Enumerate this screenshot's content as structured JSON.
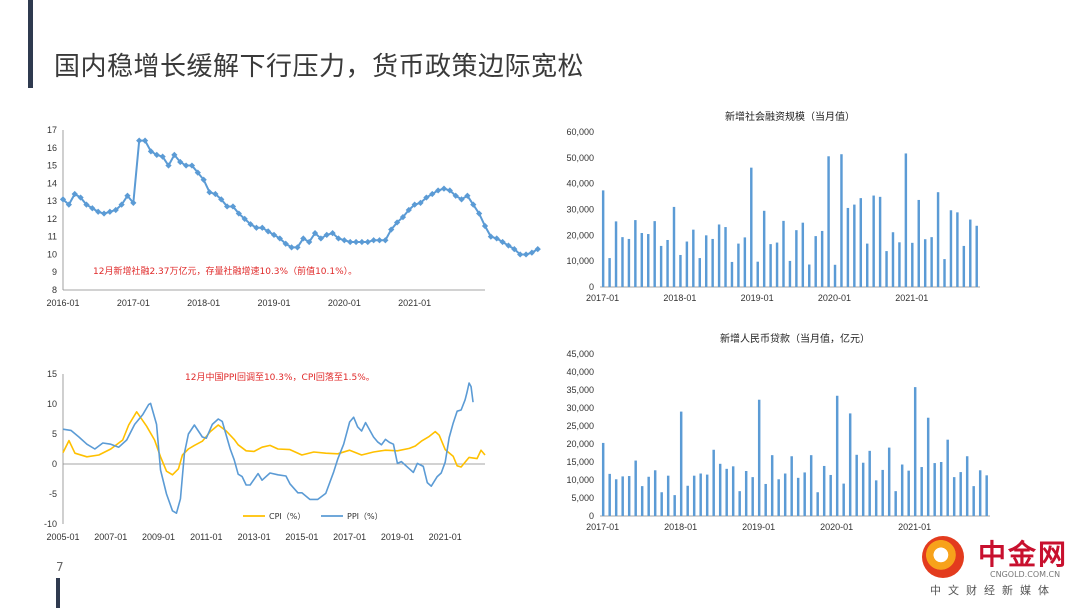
{
  "page": {
    "title": "国内稳增长缓解下行压力，货币政策边际宽松",
    "page_number": "7"
  },
  "logo": {
    "cn": "中金网",
    "url": "CNGOLD.COM.CN",
    "sub": "中文财经新媒体"
  },
  "chart_data": [
    {
      "type": "line",
      "title": "",
      "note": "12月新增社融2.37万亿元，存量社融增速10.3%（前值10.1%）。",
      "x_ticks": [
        "2016-01",
        "2017-01",
        "2018-01",
        "2019-01",
        "2020-01",
        "2021-01"
      ],
      "y_ticks": [
        "8",
        "9",
        "10",
        "11",
        "12",
        "13",
        "14",
        "15",
        "16",
        "17"
      ],
      "ylim": [
        8,
        17
      ],
      "start": "2016-01",
      "series": [
        {
          "name": "",
          "color": "#5b9bd5",
          "values": [
            13.1,
            12.8,
            13.4,
            13.2,
            12.8,
            12.6,
            12.4,
            12.3,
            12.4,
            12.5,
            12.8,
            13.3,
            12.9,
            16.4,
            16.4,
            15.8,
            15.6,
            15.5,
            15.0,
            15.6,
            15.2,
            15.0,
            15.0,
            14.6,
            14.2,
            13.5,
            13.4,
            13.1,
            12.7,
            12.7,
            12.3,
            12.0,
            11.7,
            11.5,
            11.5,
            11.3,
            11.1,
            10.9,
            10.6,
            10.4,
            10.4,
            10.9,
            10.7,
            11.2,
            10.9,
            11.1,
            11.2,
            10.9,
            10.8,
            10.7,
            10.7,
            10.7,
            10.7,
            10.8,
            10.8,
            10.8,
            11.4,
            11.8,
            12.1,
            12.5,
            12.8,
            12.9,
            13.2,
            13.4,
            13.6,
            13.7,
            13.6,
            13.3,
            13.1,
            13.3,
            12.8,
            12.3,
            11.6,
            11.0,
            10.9,
            10.7,
            10.5,
            10.3,
            10.0,
            10.0,
            10.1,
            10.3
          ]
        }
      ]
    },
    {
      "type": "bar",
      "title": "新增社会融资规模（当月值）",
      "x_ticks": [
        "2017-01",
        "2018-01",
        "2019-01",
        "2020-01",
        "2021-01"
      ],
      "y_ticks": [
        "0",
        "10,000",
        "20,000",
        "30,000",
        "40,000",
        "50,000",
        "60,000"
      ],
      "ylim": [
        0,
        60000
      ],
      "series": [
        {
          "name": "",
          "color": "#5b9bd5",
          "values": [
            37400,
            11200,
            25400,
            19300,
            18600,
            25900,
            20900,
            20500,
            25500,
            15900,
            18200,
            31000,
            12400,
            17600,
            22200,
            11200,
            20000,
            18600,
            24200,
            23200,
            9700,
            16800,
            19200,
            46200,
            9800,
            29500,
            16600,
            17200,
            25600,
            10100,
            22000,
            24900,
            8700,
            19700,
            21700,
            50600,
            8600,
            51400,
            30600,
            31900,
            34400,
            16800,
            35400,
            34900,
            13900,
            21200,
            17300,
            51700,
            17100,
            33700,
            18500,
            19300,
            36700,
            10800,
            29700,
            28900,
            15900,
            26100,
            23700
          ]
        }
      ]
    },
    {
      "type": "line",
      "title": "",
      "note": "12月中国PPI回调至10.3%，CPI回落至1.5%。",
      "x_ticks": [
        "2005-01",
        "2007-01",
        "2009-01",
        "2011-01",
        "2013-01",
        "2015-01",
        "2017-01",
        "2019-01",
        "2021-01"
      ],
      "y_ticks": [
        "-10",
        "-5",
        "0",
        "5",
        "10",
        "15"
      ],
      "ylim": [
        -10,
        15
      ],
      "start": "2005-01",
      "legend_position": "bottom",
      "series": [
        {
          "name": "CPI（%）",
          "color": "#ffc000",
          "points": [
            [
              0,
              1.9
            ],
            [
              3,
              3.9
            ],
            [
              6,
              1.8
            ],
            [
              12,
              1.2
            ],
            [
              18,
              1.5
            ],
            [
              24,
              2.5
            ],
            [
              30,
              4.0
            ],
            [
              33,
              6.5
            ],
            [
              37,
              8.7
            ],
            [
              42,
              6.3
            ],
            [
              46,
              4.0
            ],
            [
              49,
              1.2
            ],
            [
              52,
              -1.2
            ],
            [
              55,
              -1.8
            ],
            [
              58,
              -0.8
            ],
            [
              60,
              1.5
            ],
            [
              63,
              2.5
            ],
            [
              66,
              3.1
            ],
            [
              70,
              3.8
            ],
            [
              74,
              5.4
            ],
            [
              78,
              6.5
            ],
            [
              82,
              5.5
            ],
            [
              86,
              4.1
            ],
            [
              88,
              3.2
            ],
            [
              92,
              2.2
            ],
            [
              96,
              2.1
            ],
            [
              100,
              2.8
            ],
            [
              104,
              3.1
            ],
            [
              108,
              2.5
            ],
            [
              114,
              2.4
            ],
            [
              120,
              1.5
            ],
            [
              126,
              2.0
            ],
            [
              132,
              1.8
            ],
            [
              138,
              1.7
            ],
            [
              144,
              2.3
            ],
            [
              150,
              1.5
            ],
            [
              156,
              2.0
            ],
            [
              162,
              2.3
            ],
            [
              168,
              2.2
            ],
            [
              174,
              2.6
            ],
            [
              177,
              3.0
            ],
            [
              180,
              3.8
            ],
            [
              184,
              4.6
            ],
            [
              187,
              5.4
            ],
            [
              189,
              4.8
            ],
            [
              192,
              2.4
            ],
            [
              196,
              1.3
            ],
            [
              198,
              -0.3
            ],
            [
              200,
              -0.5
            ],
            [
              204,
              1.1
            ],
            [
              208,
              0.9
            ],
            [
              210,
              2.3
            ],
            [
              212,
              1.5
            ]
          ]
        },
        {
          "name": "PPI（%）",
          "color": "#5b9bd5",
          "points": [
            [
              0,
              5.8
            ],
            [
              4,
              5.6
            ],
            [
              8,
              4.5
            ],
            [
              12,
              3.3
            ],
            [
              16,
              2.5
            ],
            [
              20,
              3.5
            ],
            [
              24,
              3.3
            ],
            [
              28,
              2.8
            ],
            [
              32,
              4.0
            ],
            [
              36,
              6.6
            ],
            [
              40,
              8.2
            ],
            [
              43,
              9.9
            ],
            [
              44,
              10.1
            ],
            [
              47,
              6.6
            ],
            [
              49,
              -1.0
            ],
            [
              52,
              -5.0
            ],
            [
              55,
              -7.8
            ],
            [
              57,
              -8.2
            ],
            [
              59,
              -5.8
            ],
            [
              61,
              1.8
            ],
            [
              63,
              5.0
            ],
            [
              66,
              6.5
            ],
            [
              70,
              4.5
            ],
            [
              72,
              4.3
            ],
            [
              75,
              6.6
            ],
            [
              78,
              7.5
            ],
            [
              80,
              7.1
            ],
            [
              84,
              2.5
            ],
            [
              86,
              0.7
            ],
            [
              88,
              -1.7
            ],
            [
              90,
              -2.1
            ],
            [
              92,
              -3.5
            ],
            [
              94,
              -3.5
            ],
            [
              98,
              -1.6
            ],
            [
              100,
              -2.7
            ],
            [
              104,
              -1.5
            ],
            [
              108,
              -1.8
            ],
            [
              112,
              -2.0
            ],
            [
              114,
              -3.3
            ],
            [
              118,
              -4.8
            ],
            [
              120,
              -4.8
            ],
            [
              124,
              -5.9
            ],
            [
              128,
              -5.9
            ],
            [
              130,
              -5.4
            ],
            [
              132,
              -4.9
            ],
            [
              134,
              -3.1
            ],
            [
              136,
              -1.3
            ],
            [
              138,
              0.8
            ],
            [
              141,
              3.3
            ],
            [
              144,
              7.0
            ],
            [
              146,
              7.8
            ],
            [
              148,
              6.2
            ],
            [
              150,
              5.5
            ],
            [
              152,
              6.9
            ],
            [
              156,
              4.5
            ],
            [
              158,
              3.7
            ],
            [
              160,
              3.2
            ],
            [
              162,
              4.1
            ],
            [
              164,
              3.6
            ],
            [
              166,
              3.3
            ],
            [
              168,
              0.1
            ],
            [
              170,
              0.4
            ],
            [
              174,
              -0.8
            ],
            [
              176,
              -1.4
            ],
            [
              178,
              0.1
            ],
            [
              181,
              -0.4
            ],
            [
              183,
              -3.1
            ],
            [
              185,
              -3.7
            ],
            [
              188,
              -2.1
            ],
            [
              190,
              -1.5
            ],
            [
              192,
              0.3
            ],
            [
              194,
              4.4
            ],
            [
              196,
              6.8
            ],
            [
              198,
              8.8
            ],
            [
              200,
              9.0
            ],
            [
              202,
              10.7
            ],
            [
              203,
              12.0
            ],
            [
              204,
              13.5
            ],
            [
              205,
              12.9
            ],
            [
              206,
              10.3
            ]
          ]
        }
      ]
    },
    {
      "type": "bar",
      "title": "新增人民币贷款（当月值，亿元）",
      "x_ticks": [
        "2017-01",
        "2018-01",
        "2019-01",
        "2020-01",
        "2021-01"
      ],
      "y_ticks": [
        "0",
        "5,000",
        "10,000",
        "15,000",
        "20,000",
        "25,000",
        "30,000",
        "35,000",
        "40,000",
        "45,000"
      ],
      "ylim": [
        0,
        45000
      ],
      "series": [
        {
          "name": "",
          "color": "#5b9bd5",
          "values": [
            20300,
            11700,
            10200,
            11000,
            11100,
            15400,
            8300,
            10900,
            12700,
            6600,
            11200,
            5800,
            29000,
            8400,
            11200,
            11800,
            11500,
            18400,
            14500,
            13100,
            13800,
            6900,
            12500,
            10800,
            32300,
            8900,
            16900,
            10200,
            11800,
            16600,
            10600,
            12100,
            16900,
            6600,
            13900,
            11400,
            33400,
            9000,
            28500,
            17000,
            14800,
            18100,
            9900,
            12800,
            19000,
            6900,
            14300,
            12600,
            35800,
            13600,
            27300,
            14700,
            15000,
            21200,
            10800,
            12200,
            16600,
            8300,
            12700,
            11300
          ]
        }
      ]
    }
  ]
}
